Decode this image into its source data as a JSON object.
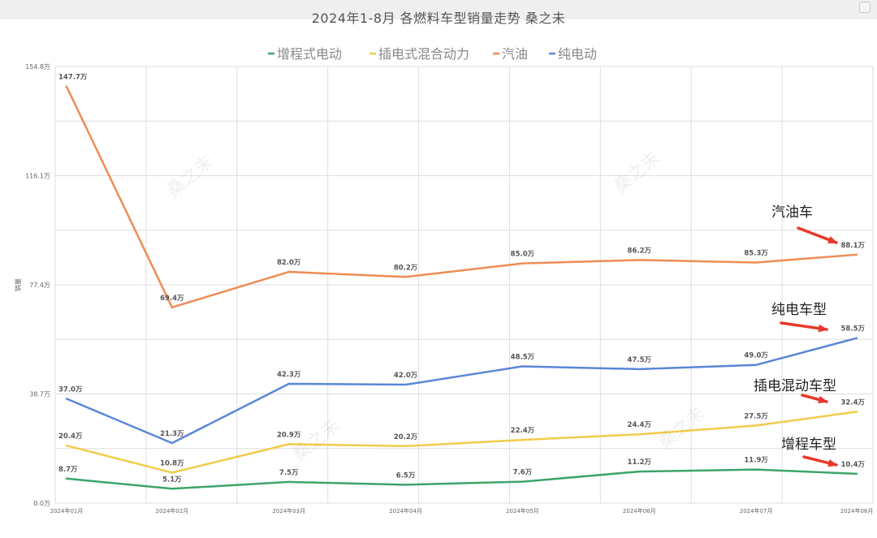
{
  "title": "2024年1-8月 各燃料车型销量走势 桑之未",
  "watermark": "桑之未",
  "chart_data": {
    "type": "line",
    "title": "2024年1-8月 各燃料车型销量走势 桑之未",
    "xlabel": "",
    "ylabel": "销量",
    "ylim": [
      0,
      154.8
    ],
    "yticks": [
      "0.0万",
      "38.7万",
      "77.4万",
      "116.1万",
      "154.8万"
    ],
    "categories": [
      "2024年01月",
      "2024年02月",
      "2024年03月",
      "2024年04月",
      "2024年05月",
      "2024年06月",
      "2024年07月",
      "2024年08月"
    ],
    "grid": true,
    "legend_position": "top",
    "series": [
      {
        "name": "增程式电动",
        "color": "#3da46a",
        "values": [
          8.7,
          5.1,
          7.5,
          6.5,
          7.6,
          11.2,
          11.9,
          10.4
        ],
        "labels": [
          "8.7万",
          "5.1万",
          "7.5万",
          "6.5万",
          "7.6万",
          "11.2万",
          "11.9万",
          "10.4万"
        ]
      },
      {
        "name": "插电式混合动力",
        "color": "#f2cc4a",
        "values": [
          20.4,
          10.8,
          20.9,
          20.2,
          22.4,
          24.4,
          27.5,
          32.4
        ],
        "labels": [
          "20.4万",
          "10.8万",
          "20.9万",
          "20.2万",
          "22.4万",
          "24.4万",
          "27.5万",
          "32.4万"
        ]
      },
      {
        "name": "汽油",
        "color": "#ee8c55",
        "values": [
          147.7,
          69.4,
          82.0,
          80.2,
          85.0,
          86.2,
          85.3,
          88.1
        ],
        "labels": [
          "147.7万",
          "69.4万",
          "82.0万",
          "80.2万",
          "85.0万",
          "86.2万",
          "85.3万",
          "88.1万"
        ]
      },
      {
        "name": "纯电动",
        "color": "#5b86d8",
        "values": [
          37.0,
          21.3,
          42.3,
          42.0,
          48.5,
          47.5,
          49.0,
          58.5
        ],
        "labels": [
          "37.0万",
          "21.3万",
          "42.3万",
          "42.0万",
          "48.5万",
          "47.5万",
          "49.0万",
          "58.5万"
        ]
      }
    ],
    "annotations": [
      {
        "text": "汽油车",
        "color": "#e8392a"
      },
      {
        "text": "纯电车型",
        "color": "#e8392a"
      },
      {
        "text": "插电混动车型",
        "color": "#e8392a"
      },
      {
        "text": "增程车型",
        "color": "#e8392a"
      }
    ]
  }
}
